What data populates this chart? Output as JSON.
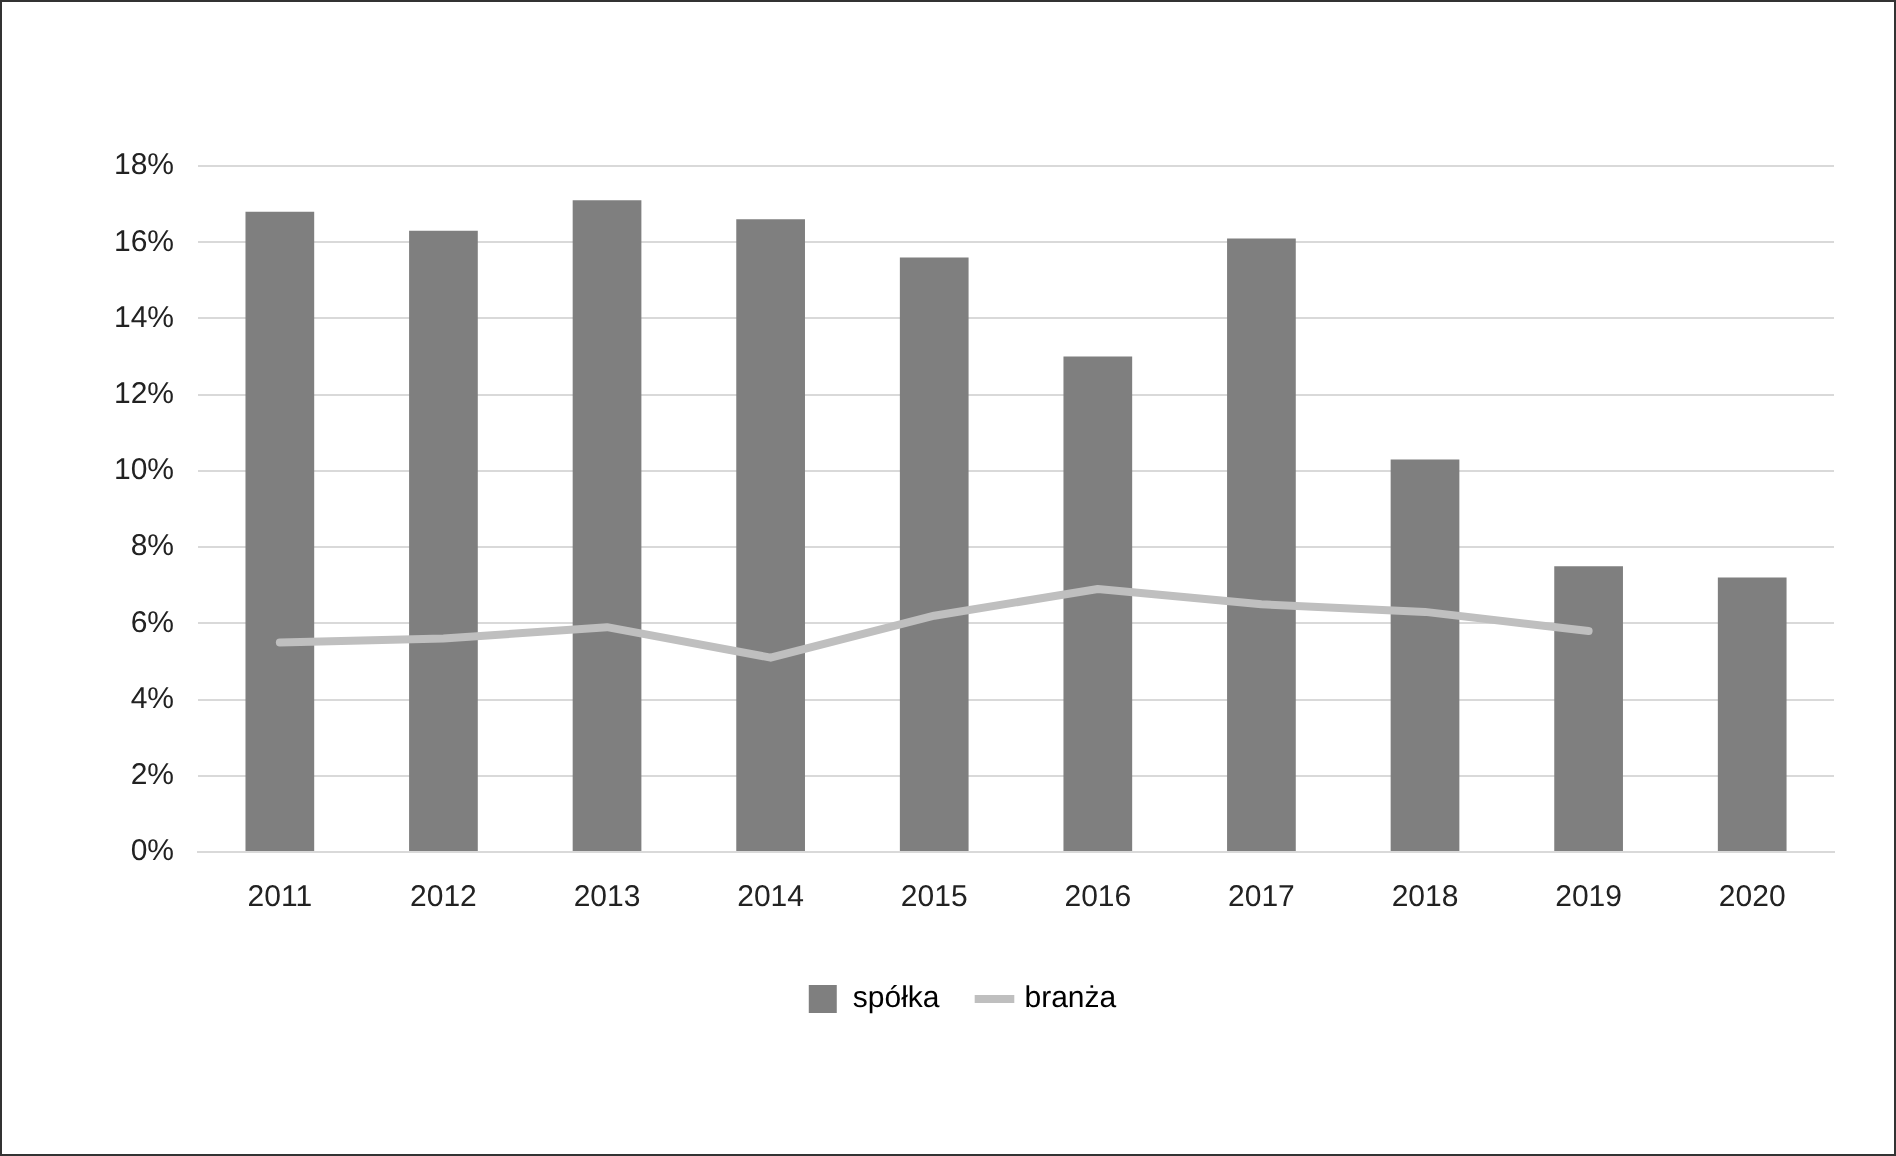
{
  "chart_data": {
    "type": "bar",
    "categories": [
      "2011",
      "2012",
      "2013",
      "2014",
      "2015",
      "2016",
      "2017",
      "2018",
      "2019",
      "2020"
    ],
    "series": [
      {
        "name": "spółka",
        "color": "#7f7f7f",
        "values": [
          16.8,
          16.3,
          17.1,
          16.6,
          15.6,
          13.0,
          16.1,
          10.3,
          7.5,
          7.2
        ]
      },
      {
        "name": "branża",
        "type": "line",
        "color": "#bfbfbf",
        "values": [
          5.5,
          5.6,
          5.9,
          5.1,
          6.2,
          6.9,
          6.5,
          6.3,
          5.8,
          null
        ]
      }
    ],
    "ylim": [
      0,
      18
    ],
    "yticks": [
      {
        "value": 0,
        "label": "0%"
      },
      {
        "value": 2,
        "label": "2%"
      },
      {
        "value": 4,
        "label": "4%"
      },
      {
        "value": 6,
        "label": "6%"
      },
      {
        "value": 8,
        "label": "8%"
      },
      {
        "value": 10,
        "label": "10%"
      },
      {
        "value": 12,
        "label": "12%"
      },
      {
        "value": 14,
        "label": "14%"
      },
      {
        "value": 16,
        "label": "16%"
      },
      {
        "value": 18,
        "label": "18%"
      }
    ],
    "grid": "y",
    "legend": "bottom",
    "marker": "none"
  }
}
